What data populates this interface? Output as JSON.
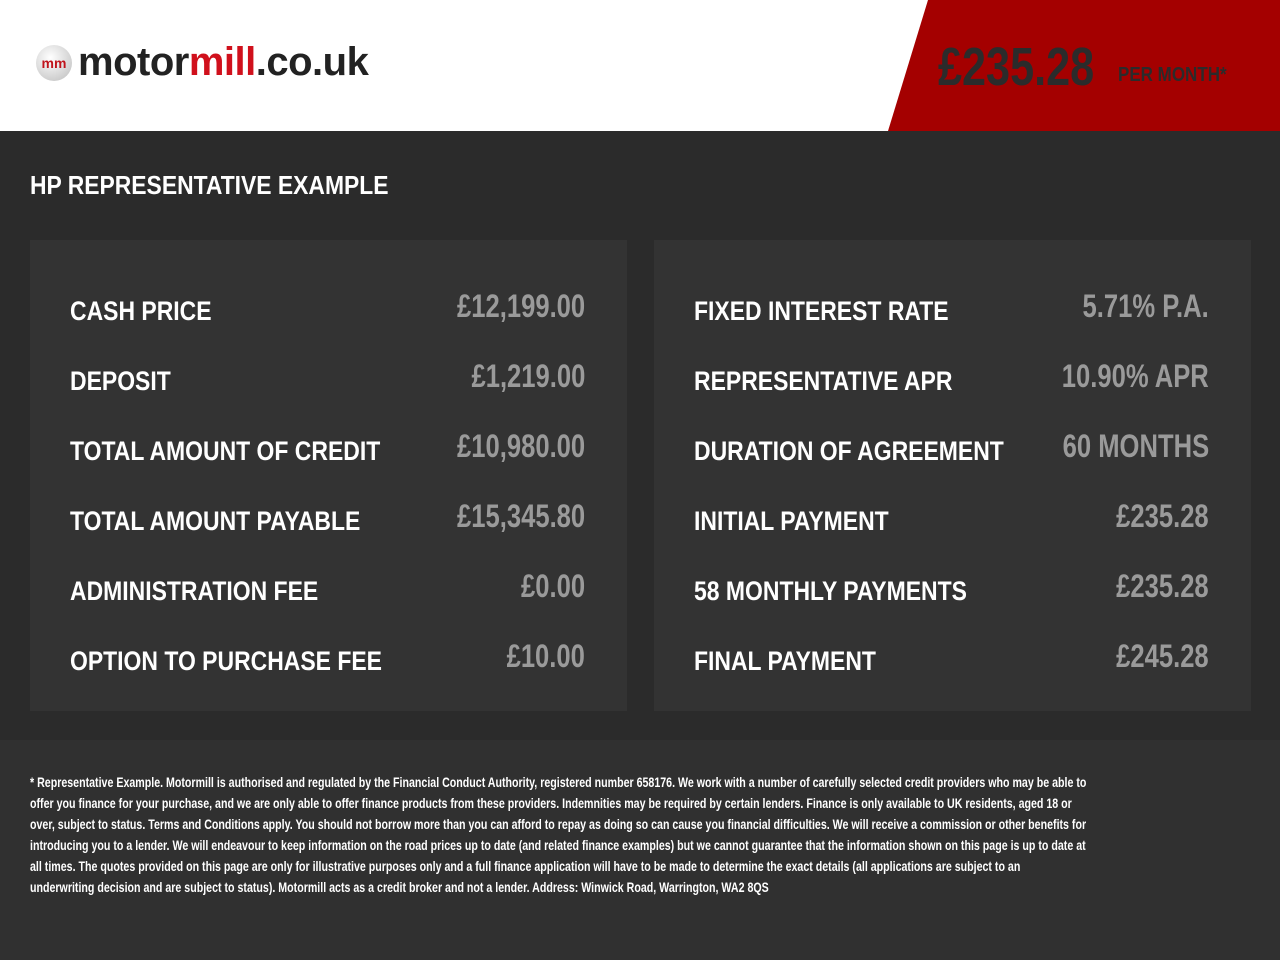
{
  "header": {
    "logo": {
      "badge": "mm",
      "text_a": "motor",
      "text_b": "mill",
      "text_c": ".co.uk"
    },
    "price": "£235.28",
    "per_month": "PER MONTH*"
  },
  "colors": {
    "accent": "#a40000",
    "logo_red": "#d0101c",
    "background": "#2b2b2b",
    "panel": "#333333"
  },
  "title": "HP REPRESENTATIVE EXAMPLE",
  "left": [
    {
      "label": "CASH PRICE",
      "value": "£12,199.00"
    },
    {
      "label": "DEPOSIT",
      "value": "£1,219.00"
    },
    {
      "label": "TOTAL AMOUNT OF CREDIT",
      "value": "£10,980.00"
    },
    {
      "label": "TOTAL AMOUNT PAYABLE",
      "value": "£15,345.80"
    },
    {
      "label": "ADMINISTRATION FEE",
      "value": "£0.00"
    },
    {
      "label": "OPTION TO PURCHASE FEE",
      "value": "£10.00"
    }
  ],
  "right": [
    {
      "label": "FIXED INTEREST RATE",
      "value": "5.71% P.A."
    },
    {
      "label": "REPRESENTATIVE APR",
      "value": "10.90% APR"
    },
    {
      "label": "DURATION OF AGREEMENT",
      "value": "60 MONTHS"
    },
    {
      "label": "INITIAL PAYMENT",
      "value": "£235.28"
    },
    {
      "label": "58 MONTHLY PAYMENTS",
      "value": "£235.28"
    },
    {
      "label": "FINAL PAYMENT",
      "value": "£245.28"
    }
  ],
  "disclaimer": [
    "* Representative Example. Motormill is authorised and regulated by the Financial Conduct Authority, registered number 658176. We work with a number of carefully selected credit providers who may be able to",
    "offer you finance for your purchase, and we are only able to offer finance products from these providers. Indemnities may be required by certain lenders. Finance is only available to UK residents, aged 18 or",
    "over, subject to status. Terms and Conditions apply. You should not borrow more than you can afford to repay as doing so can cause you financial difficulties. We will receive a commission or other benefits for",
    "introducing you to a lender. We will endeavour to keep information on the road prices up to date (and related finance examples) but we cannot guarantee that the information shown on this page is up to date at",
    "all times. The quotes provided on this page are only for illustrative purposes only and a full finance application will have to be made to determine the exact details (all applications are subject to an",
    "underwriting decision and are subject to status). Motormill acts as a credit broker and not a lender. Address: Winwick Road, Warrington, WA2 8QS"
  ]
}
